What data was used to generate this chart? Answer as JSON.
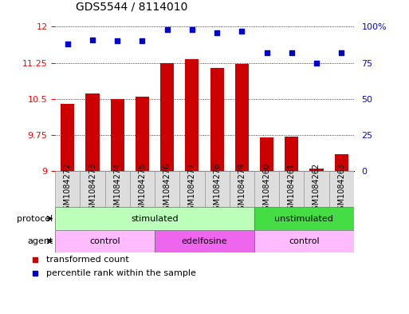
{
  "title": "GDS5544 / 8114010",
  "samples": [
    "GSM1084272",
    "GSM1084273",
    "GSM1084274",
    "GSM1084275",
    "GSM1084276",
    "GSM1084277",
    "GSM1084278",
    "GSM1084279",
    "GSM1084260",
    "GSM1084261",
    "GSM1084262",
    "GSM1084263"
  ],
  "bar_values": [
    10.4,
    10.62,
    10.5,
    10.55,
    11.25,
    11.32,
    11.15,
    11.22,
    9.7,
    9.72,
    9.05,
    9.35
  ],
  "percentile_values": [
    88,
    91,
    90,
    90,
    98,
    98,
    96,
    97,
    82,
    82,
    75,
    82
  ],
  "bar_color": "#cc0000",
  "dot_color": "#0000cc",
  "ylim_left": [
    9,
    12
  ],
  "ylim_right": [
    0,
    100
  ],
  "yticks_left": [
    9,
    9.75,
    10.5,
    11.25,
    12
  ],
  "ytick_labels_left": [
    "9",
    "9.75",
    "10.5",
    "11.25",
    "12"
  ],
  "yticks_right": [
    0,
    25,
    50,
    75,
    100
  ],
  "ytick_labels_right": [
    "0",
    "25",
    "50",
    "75",
    "100%"
  ],
  "protocol_labels": [
    {
      "label": "stimulated",
      "start": 0,
      "end": 8,
      "color": "#bbffbb"
    },
    {
      "label": "unstimulated",
      "start": 8,
      "end": 12,
      "color": "#44dd44"
    }
  ],
  "agent_labels": [
    {
      "label": "control",
      "start": 0,
      "end": 4,
      "color": "#ffbbff"
    },
    {
      "label": "edelfosine",
      "start": 4,
      "end": 8,
      "color": "#ee66ee"
    },
    {
      "label": "control",
      "start": 8,
      "end": 12,
      "color": "#ffbbff"
    }
  ],
  "legend_bar_label": "transformed count",
  "legend_dot_label": "percentile rank within the sample",
  "background_color": "#ffffff",
  "bar_width": 0.55,
  "tick_label_fontsize": 7,
  "axis_label_fontsize": 8,
  "title_fontsize": 10
}
